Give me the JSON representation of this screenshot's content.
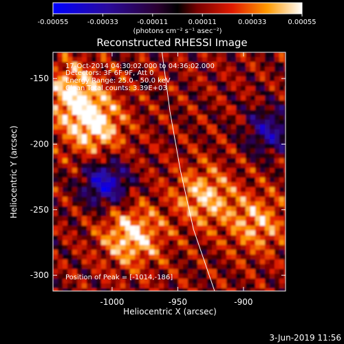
{
  "colorbar": {
    "tick_labels": [
      "-0.00055",
      "-0.00033",
      "-0.00011",
      "0.00011",
      "0.00033",
      "0.00055"
    ],
    "units_label": "(photons cm⁻² s⁻¹ asec⁻²)",
    "range": [
      -0.00055,
      0.00055
    ]
  },
  "chart_data": {
    "type": "heatmap",
    "title": "Reconstructed RHESSI Image",
    "xlabel": "Heliocentric X (arcsec)",
    "ylabel": "Heliocentric Y (arcsec)",
    "xlim": [
      -1045,
      -868
    ],
    "ylim": [
      -312,
      -130
    ],
    "x_ticks": [
      -1000,
      -950,
      -900
    ],
    "y_ticks": [
      -300,
      -250,
      -200,
      -150
    ],
    "x_tick_labels": [
      "-1000",
      "-950",
      "-900"
    ],
    "y_tick_labels": [
      "-300",
      "-250",
      "-200",
      "-150"
    ],
    "annotations": [
      "17-Oct-2014 04:30:02.000 to 04:36:02.000",
      "Detectors: 3F 6F 9F, Att 0",
      "Energy Range: 25.0 - 50.0 keV",
      "Clean    Total counts: 3.39E+03"
    ],
    "peak_label": "Position of Peak = [-1014,-186]",
    "limb_curve": [
      [
        -962,
        -130
      ],
      [
        -956,
        -175
      ],
      [
        -948,
        -220
      ],
      [
        -938,
        -265
      ],
      [
        -922,
        -312
      ]
    ],
    "bright_regions": [
      {
        "x": -985,
        "y": -270,
        "level": 0.00055
      },
      {
        "x": -1014,
        "y": -186,
        "level": 0.00055
      },
      {
        "x": -1030,
        "y": -160,
        "level": 0.0005
      },
      {
        "x": -930,
        "y": -240,
        "level": 0.00045
      },
      {
        "x": -890,
        "y": -260,
        "level": 0.0004
      }
    ],
    "dark_regions": [
      {
        "x": -1005,
        "y": -230,
        "level": -0.00055
      },
      {
        "x": -880,
        "y": -190,
        "level": -0.0004
      }
    ]
  },
  "footer": {
    "date_text": "3-Jun-2019 11:56"
  }
}
